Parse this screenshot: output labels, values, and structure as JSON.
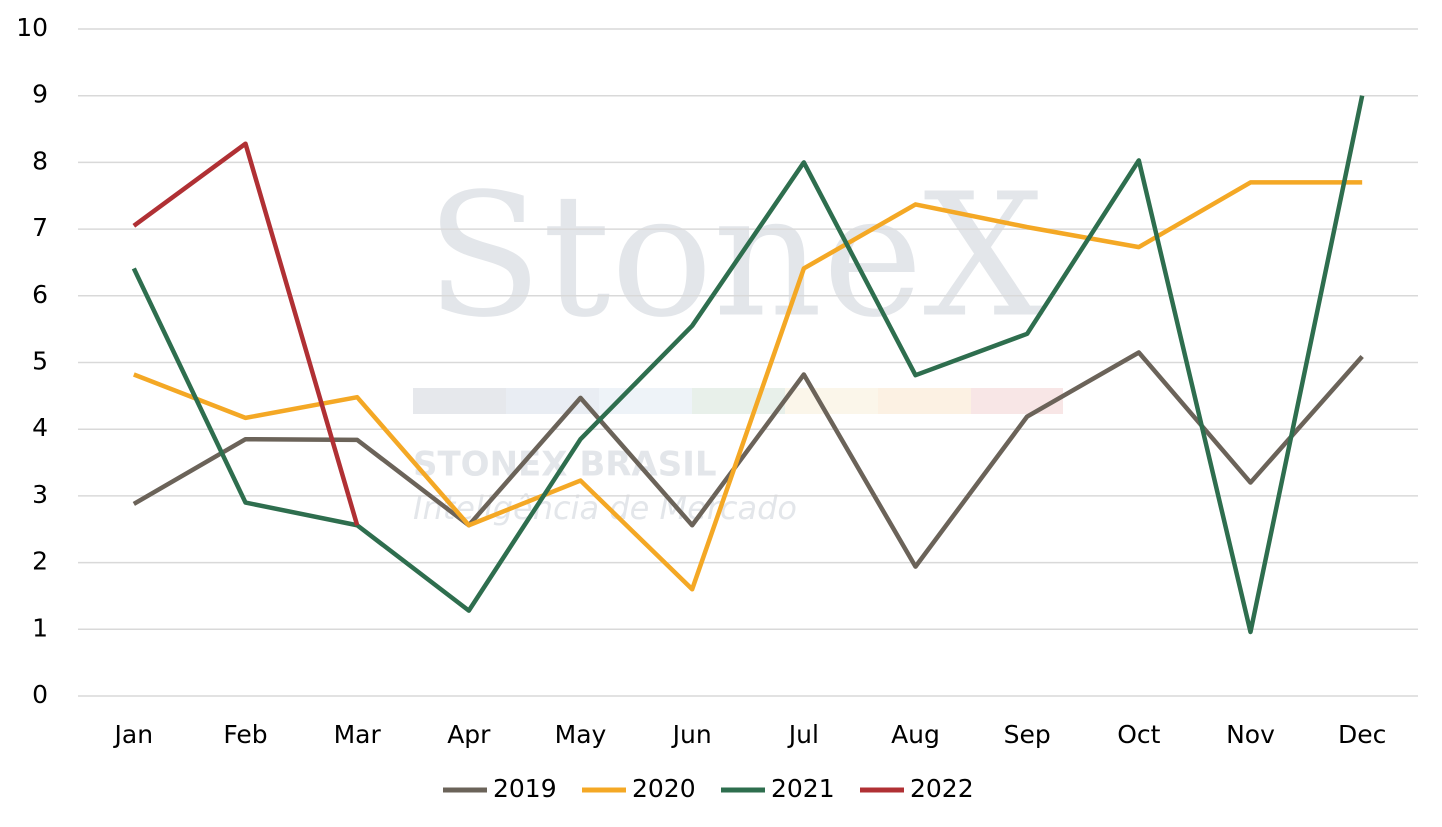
{
  "chart_data": {
    "type": "line",
    "categories": [
      "Jan",
      "Feb",
      "Mar",
      "Apr",
      "May",
      "Jun",
      "Jul",
      "Aug",
      "Sep",
      "Oct",
      "Nov",
      "Dec"
    ],
    "series": [
      {
        "name": "2019",
        "color": "#6b6359",
        "values": [
          2.88,
          3.85,
          3.84,
          2.56,
          4.47,
          2.56,
          4.82,
          1.94,
          4.19,
          5.15,
          3.2,
          5.09
        ]
      },
      {
        "name": "2020",
        "color": "#f4a825",
        "values": [
          4.82,
          4.17,
          4.48,
          2.56,
          3.23,
          1.6,
          6.41,
          7.37,
          7.03,
          6.73,
          7.7,
          7.7
        ]
      },
      {
        "name": "2021",
        "color": "#2e6e4e",
        "values": [
          6.41,
          2.9,
          2.56,
          1.28,
          3.85,
          5.55,
          8.0,
          4.81,
          5.43,
          8.03,
          0.96,
          9.0
        ]
      },
      {
        "name": "2022",
        "color": "#b03034",
        "values": [
          7.05,
          8.28,
          2.56,
          null,
          null,
          null,
          null,
          null,
          null,
          null,
          null,
          null
        ]
      }
    ],
    "ylim": [
      0,
      10
    ],
    "yticks": [
      0,
      1,
      2,
      3,
      4,
      5,
      6,
      7,
      8,
      9,
      10
    ],
    "grid": true,
    "legend": "bottom"
  },
  "watermark": {
    "brand": "StoneX",
    "line1": "STONEX BRASIL",
    "line2": "Inteligência de Mercado"
  }
}
